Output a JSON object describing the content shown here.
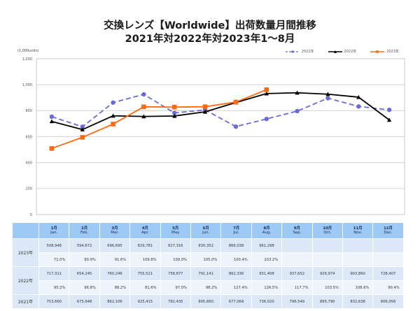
{
  "title_line1": "交換レンズ【Worldwide】出荷数量月間推移",
  "title_line2": "2021年対2022年対2023年1～8月",
  "chart_data": {
    "type": "line",
    "title": "交換レンズ【Worldwide】出荷数量月間推移 2021年対2022年対2023年1～8月",
    "ylabel": "(1,000units)",
    "xlabel": "",
    "ylim": [
      0,
      1200
    ],
    "yticks": [
      0,
      200,
      400,
      600,
      800,
      1000,
      1200
    ],
    "ytick_labels": [
      "0",
      "200",
      "400",
      "600",
      "800",
      "1,000",
      "1,200"
    ],
    "grid": true,
    "legend_position": "top-right",
    "categories": [
      "Jan.",
      "Feb.",
      "Mar.",
      "Apr.",
      "May",
      "Jun.",
      "Jul.",
      "Aug.",
      "Sep.",
      "Oct.",
      "Nov.",
      "Dec."
    ],
    "series": [
      {
        "name": "2021年",
        "color": "#6b6bd6",
        "style": "dashed",
        "marker": "circle",
        "values": [
          753.66,
          675.948,
          862.106,
          925.415,
          782.435,
          805.66,
          677.068,
          736.02,
          796.549,
          895.79,
          832.638,
          806.058
        ]
      },
      {
        "name": "2022年",
        "color": "#000000",
        "style": "solid",
        "marker": "triangle",
        "values": [
          717.311,
          654.245,
          760.246,
          755.521,
          758.877,
          791.141,
          862.336,
          931.408,
          937.652,
          926.974,
          903.86,
          728.407
        ]
      },
      {
        "name": "2023年",
        "color": "#ff6a10",
        "style": "solid",
        "marker": "square",
        "values": [
          508.948,
          594.672,
          696.695,
          829.781,
          827.316,
          830.352,
          866.038,
          961.298,
          null,
          null,
          null,
          null
        ]
      }
    ]
  },
  "table": {
    "months": [
      {
        "jp": "1月",
        "en": "Jan."
      },
      {
        "jp": "2月",
        "en": "Feb."
      },
      {
        "jp": "3月",
        "en": "Mar."
      },
      {
        "jp": "4月",
        "en": "Apr."
      },
      {
        "jp": "5月",
        "en": "May"
      },
      {
        "jp": "6月",
        "en": "Jun."
      },
      {
        "jp": "7月",
        "en": "Jul."
      },
      {
        "jp": "8月",
        "en": "Aug."
      },
      {
        "jp": "9月",
        "en": "Sep."
      },
      {
        "jp": "10月",
        "en": "Oct."
      },
      {
        "jp": "11月",
        "en": "Nov."
      },
      {
        "jp": "12月",
        "en": "Dec."
      }
    ],
    "rows": [
      {
        "year": "2023年",
        "values": [
          "508,948",
          "594,672",
          "696,695",
          "829,781",
          "827,316",
          "830,352",
          "866,038",
          "961,298",
          "",
          "",
          "",
          ""
        ],
        "ratios": [
          "71.0%",
          "90.9%",
          "91.6%",
          "109.8%",
          "109.0%",
          "105.0%",
          "100.4%",
          "103.2%",
          "",
          "",
          "",
          ""
        ]
      },
      {
        "year": "2022年",
        "values": [
          "717,311",
          "654,245",
          "760,246",
          "755,521",
          "758,877",
          "791,141",
          "862,336",
          "931,408",
          "937,652",
          "926,974",
          "903,860",
          "728,407"
        ],
        "ratios": [
          "95.2%",
          "96.8%",
          "88.2%",
          "81.6%",
          "97.0%",
          "98.2%",
          "127.4%",
          "126.5%",
          "117.7%",
          "103.5%",
          "108.6%",
          "90.4%"
        ]
      },
      {
        "year": "2021年",
        "values": [
          "753,660",
          "675,948",
          "862,106",
          "925,415",
          "782,435",
          "805,660",
          "677,068",
          "736,020",
          "796,549",
          "895,790",
          "832,638",
          "806,058"
        ]
      }
    ]
  }
}
